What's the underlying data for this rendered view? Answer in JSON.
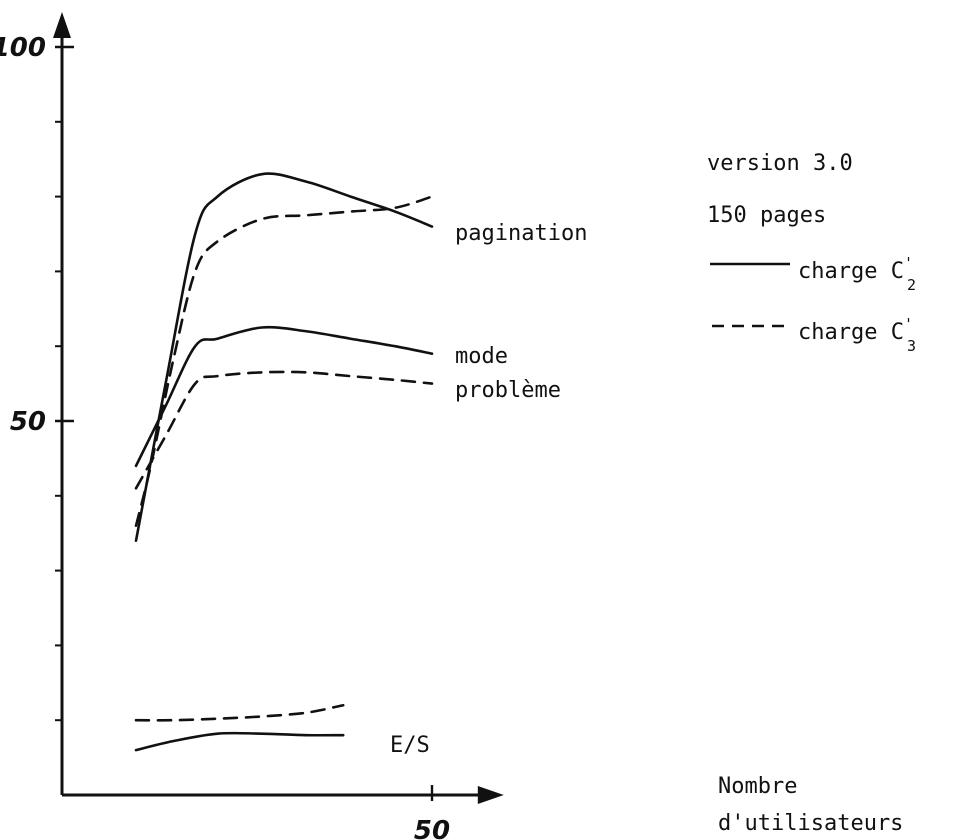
{
  "chart_data": {
    "type": "line",
    "title": "",
    "xlabel": "Nombre d'utilisateurs",
    "xlabel_lines": [
      "Nombre",
      "d'utilisateurs"
    ],
    "ylabel": "",
    "xlim": [
      0,
      57
    ],
    "ylim": [
      0,
      102
    ],
    "x_ticks_labeled": [
      {
        "value": 50,
        "label": "50"
      }
    ],
    "y_ticks_labeled": [
      {
        "value": 50,
        "label": "50"
      },
      {
        "value": 100,
        "label": "100"
      }
    ],
    "y_minor_ticks": [
      10,
      20,
      30,
      40,
      60,
      70,
      80,
      90
    ],
    "grid": false,
    "annotations": [
      {
        "text": "version 3.0"
      },
      {
        "text": "150 pages"
      }
    ],
    "legend": {
      "placement": "right",
      "entries": [
        {
          "style": "solid",
          "prefix": "charge C",
          "sup": "'",
          "sub": "2"
        },
        {
          "style": "dashed",
          "prefix": "charge C",
          "sup": "'",
          "sub": "3"
        }
      ]
    },
    "series": [
      {
        "group": "pagination",
        "style": "solid",
        "points": [
          [
            10,
            34
          ],
          [
            14,
            55
          ],
          [
            18,
            75
          ],
          [
            21,
            80
          ],
          [
            27,
            83
          ],
          [
            33,
            82
          ],
          [
            39,
            80
          ],
          [
            45,
            78
          ],
          [
            50,
            76
          ]
        ]
      },
      {
        "group": "pagination",
        "style": "dashed",
        "points": [
          [
            10,
            36
          ],
          [
            12,
            44
          ],
          [
            15,
            58
          ],
          [
            18,
            70
          ],
          [
            21,
            74
          ],
          [
            27,
            77
          ],
          [
            33,
            77.5
          ],
          [
            39,
            78
          ],
          [
            45,
            78.5
          ],
          [
            50,
            80
          ]
        ]
      },
      {
        "group": "mode problème",
        "style": "solid",
        "points": [
          [
            10,
            44
          ],
          [
            14,
            52
          ],
          [
            18,
            60
          ],
          [
            21,
            61
          ],
          [
            27,
            62.5
          ],
          [
            33,
            62
          ],
          [
            39,
            61
          ],
          [
            45,
            60
          ],
          [
            50,
            59
          ]
        ]
      },
      {
        "group": "mode problème",
        "style": "dashed",
        "points": [
          [
            10,
            41
          ],
          [
            14,
            48
          ],
          [
            18,
            55
          ],
          [
            21,
            56
          ],
          [
            27,
            56.5
          ],
          [
            33,
            56.5
          ],
          [
            39,
            56
          ],
          [
            45,
            55.5
          ],
          [
            50,
            55
          ]
        ]
      },
      {
        "group": "E/S",
        "style": "solid",
        "points": [
          [
            10,
            6
          ],
          [
            15,
            7.2
          ],
          [
            21,
            8.2
          ],
          [
            27,
            8.2
          ],
          [
            33,
            8
          ],
          [
            38,
            8
          ]
        ]
      },
      {
        "group": "E/S",
        "style": "dashed",
        "points": [
          [
            10,
            10
          ],
          [
            15,
            10
          ],
          [
            21,
            10.2
          ],
          [
            27,
            10.5
          ],
          [
            33,
            11
          ],
          [
            38,
            12
          ]
        ]
      }
    ],
    "curve_labels": [
      {
        "lines": [
          "pagination"
        ]
      },
      {
        "lines": [
          "mode",
          "problème"
        ]
      },
      {
        "lines": [
          "E/S"
        ]
      }
    ]
  }
}
